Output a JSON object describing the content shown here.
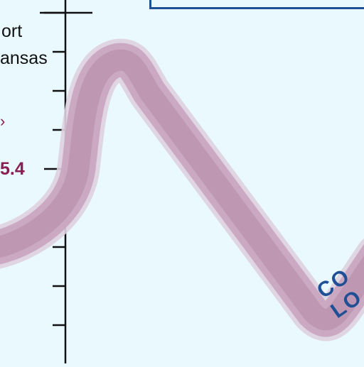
{
  "chart_data": {
    "type": "line",
    "labels": [
      "ort",
      "ansas"
    ],
    "value_label": "5.4",
    "partial_text": "CO LO",
    "colors": {
      "background": "#e9f9fd",
      "line": "#c9a7c0",
      "line_core": "#b58aa8",
      "axis": "#111111",
      "value": "#8a1e54",
      "frame": "#1f4f95"
    }
  }
}
